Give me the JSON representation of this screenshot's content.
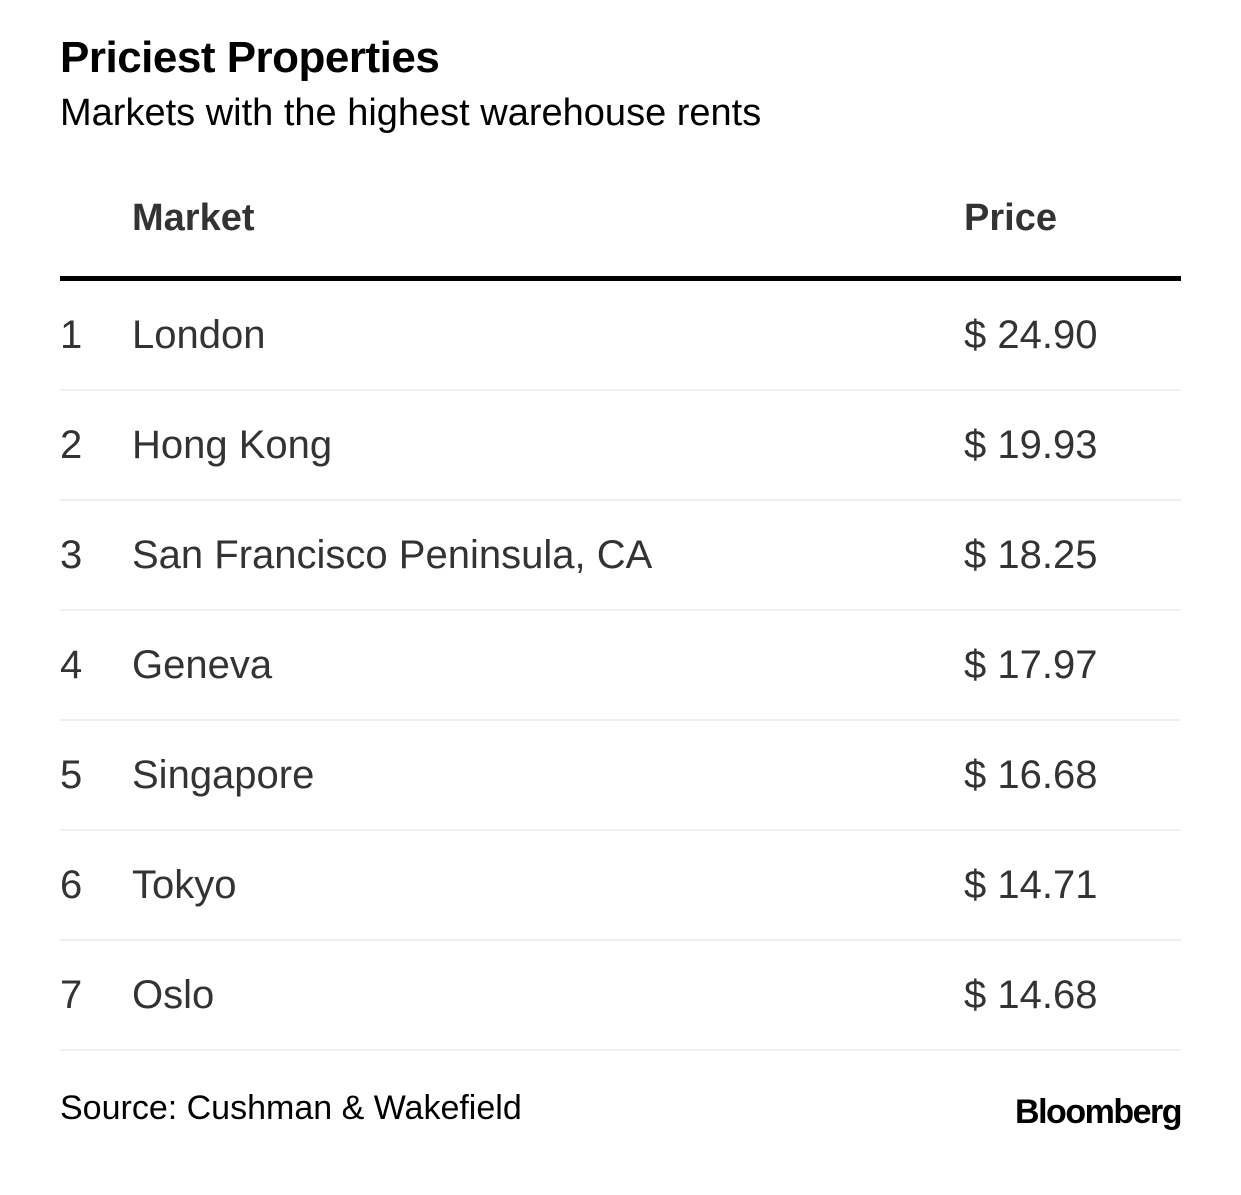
{
  "chart_data": {
    "type": "table",
    "title": "Priciest Properties",
    "subtitle": "Markets with the highest warehouse rents",
    "columns": [
      "",
      "Market",
      "Price"
    ],
    "rows": [
      {
        "rank": "1",
        "market": "London",
        "price": "$ 24.90"
      },
      {
        "rank": "2",
        "market": "Hong Kong",
        "price": "$ 19.93"
      },
      {
        "rank": "3",
        "market": "San Francisco Peninsula, CA",
        "price": "$ 18.25"
      },
      {
        "rank": "4",
        "market": "Geneva",
        "price": "$ 17.97"
      },
      {
        "rank": "5",
        "market": "Singapore",
        "price": "$ 16.68"
      },
      {
        "rank": "6",
        "market": "Tokyo",
        "price": "$ 14.71"
      },
      {
        "rank": "7",
        "market": "Oslo",
        "price": "$ 14.68"
      }
    ],
    "values": [
      24.9,
      19.93,
      18.25,
      17.97,
      16.68,
      14.71,
      14.68
    ],
    "source": "Source: Cushman & Wakefield",
    "logo": "Bloomberg"
  },
  "colors": {
    "header_rule": "#000000",
    "row_rule": "#f0f0f0",
    "body_text": "#333333"
  }
}
